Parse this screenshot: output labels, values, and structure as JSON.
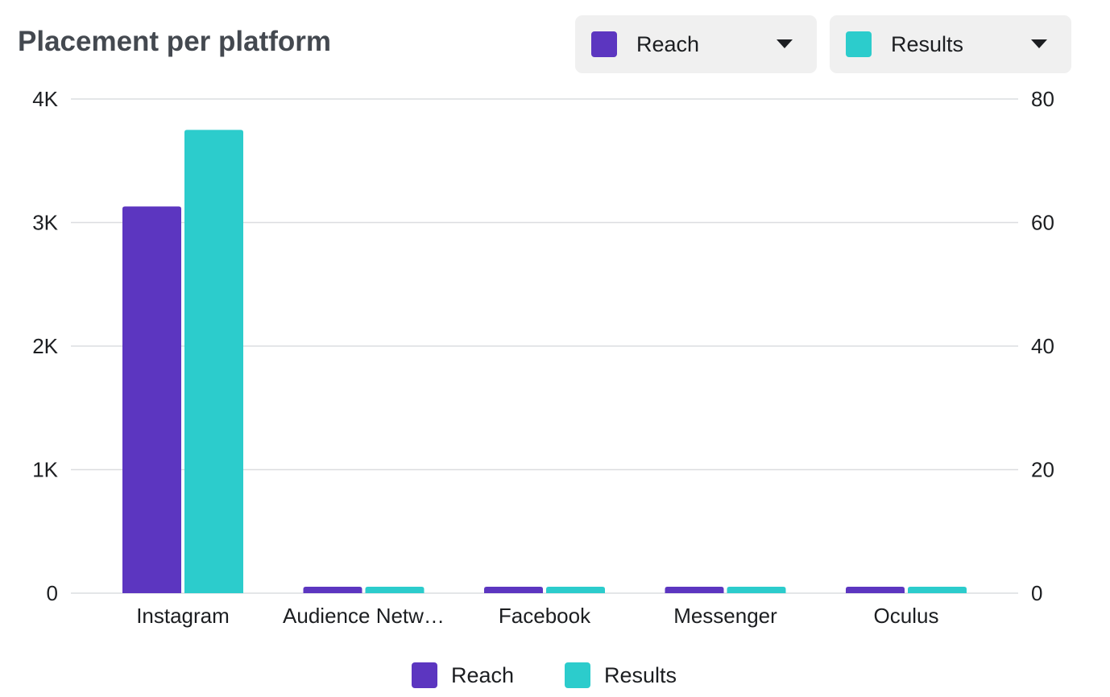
{
  "title": "Placement per platform",
  "controls": {
    "left_metric": {
      "label": "Reach",
      "color": "#5c36c0",
      "icon": "chevron-down-icon"
    },
    "right_metric": {
      "label": "Results",
      "color": "#2ccccc",
      "icon": "chevron-down-icon"
    }
  },
  "chart_data": {
    "type": "bar",
    "categories": [
      "Instagram",
      "Audience Netw…",
      "Facebook",
      "Messenger",
      "Oculus"
    ],
    "series": [
      {
        "name": "Reach",
        "axis": "left",
        "color": "#5c36c0",
        "values": [
          3130,
          40,
          40,
          40,
          40
        ]
      },
      {
        "name": "Results",
        "axis": "right",
        "color": "#2ccccc",
        "values": [
          75,
          1,
          1,
          1,
          1
        ]
      }
    ],
    "y_left": {
      "ticks": [
        0,
        1000,
        2000,
        3000,
        4000
      ],
      "tick_labels": [
        "0",
        "1K",
        "2K",
        "3K",
        "4K"
      ],
      "ylim": [
        0,
        4000
      ]
    },
    "y_right": {
      "ticks": [
        0,
        20,
        40,
        60,
        80
      ],
      "tick_labels": [
        "0",
        "20",
        "40",
        "60",
        "80"
      ],
      "ylim": [
        0,
        80
      ]
    },
    "grid": true,
    "legend": {
      "placement": "bottom",
      "entries": [
        "Reach",
        "Results"
      ]
    }
  }
}
